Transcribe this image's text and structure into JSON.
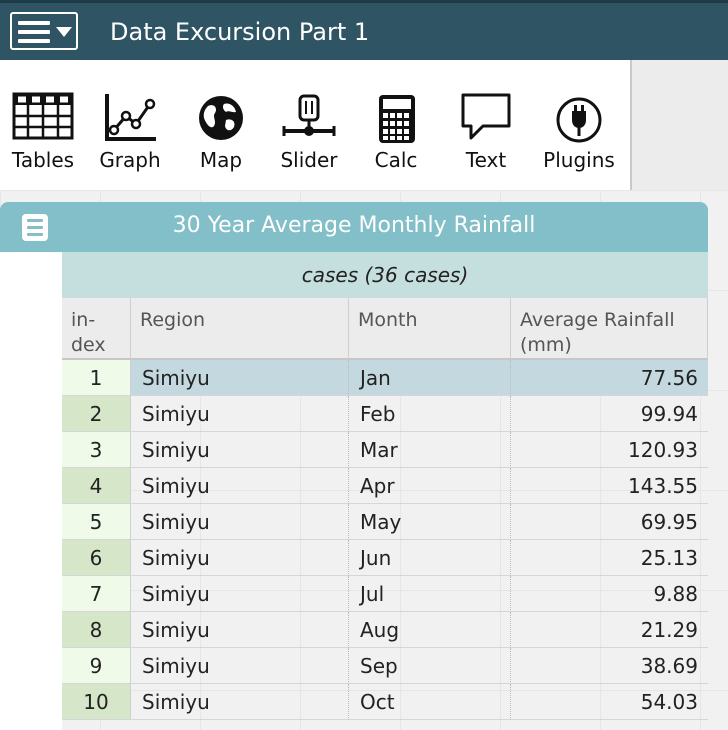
{
  "header": {
    "title": "Data Excursion Part 1"
  },
  "toolbar": {
    "items": [
      {
        "label": "Tables",
        "icon": "table-icon"
      },
      {
        "label": "Graph",
        "icon": "graph-icon"
      },
      {
        "label": "Map",
        "icon": "globe-icon"
      },
      {
        "label": "Slider",
        "icon": "slider-icon"
      },
      {
        "label": "Calc",
        "icon": "calculator-icon"
      },
      {
        "label": "Text",
        "icon": "speech-bubble-icon"
      },
      {
        "label": "Plugins",
        "icon": "plug-icon"
      }
    ]
  },
  "case_table": {
    "title": "30 Year Average Monthly Rainfall",
    "collection_label": "cases (36 cases)",
    "columns": [
      {
        "label": "in-\ndex"
      },
      {
        "label": "Region"
      },
      {
        "label": "Month"
      },
      {
        "label": "Average Rainfall\n(mm)"
      }
    ],
    "rows": [
      {
        "index": "1",
        "region": "Simiyu",
        "month": "Jan",
        "rainfall": "77.56"
      },
      {
        "index": "2",
        "region": "Simiyu",
        "month": "Feb",
        "rainfall": "99.94"
      },
      {
        "index": "3",
        "region": "Simiyu",
        "month": "Mar",
        "rainfall": "120.93"
      },
      {
        "index": "4",
        "region": "Simiyu",
        "month": "Apr",
        "rainfall": "143.55"
      },
      {
        "index": "5",
        "region": "Simiyu",
        "month": "May",
        "rainfall": "69.95"
      },
      {
        "index": "6",
        "region": "Simiyu",
        "month": "Jun",
        "rainfall": "25.13"
      },
      {
        "index": "7",
        "region": "Simiyu",
        "month": "Jul",
        "rainfall": "9.88"
      },
      {
        "index": "8",
        "region": "Simiyu",
        "month": "Aug",
        "rainfall": "21.29"
      },
      {
        "index": "9",
        "region": "Simiyu",
        "month": "Sep",
        "rainfall": "38.69"
      },
      {
        "index": "10",
        "region": "Simiyu",
        "month": "Oct",
        "rainfall": "54.03"
      }
    ],
    "selected_row": "1"
  },
  "colors": {
    "header_bg": "#2f5565",
    "titlebar_bg": "#82bfc9",
    "collection_bg": "#c5dfdf",
    "selection_bg": "#c3d8df"
  }
}
